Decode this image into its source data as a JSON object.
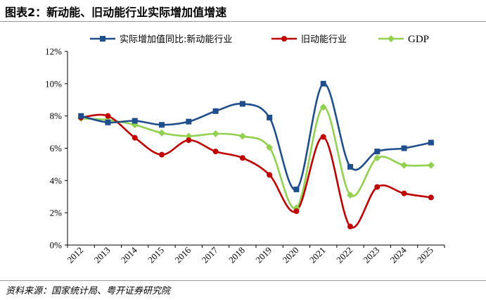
{
  "figure": {
    "title": "图表2：新动能、旧动能行业实际增加值增速",
    "source": "资料来源：国家统计局、粤开证券研究院"
  },
  "chart_data": {
    "type": "line",
    "categories": [
      "2012",
      "2013",
      "2014",
      "2015",
      "2016",
      "2017",
      "2018",
      "2019",
      "2020",
      "2021",
      "2022",
      "2023",
      "2024",
      "2025"
    ],
    "y_ticks": [
      "0%",
      "2%",
      "4%",
      "6%",
      "8%",
      "10%",
      "12%"
    ],
    "ylim": [
      0,
      12
    ],
    "grid": false,
    "legend_position": "top",
    "series": [
      {
        "name": "实际增加值同比:新动能行业",
        "color": "#1f4e8c",
        "marker": "square",
        "values": [
          8.0,
          7.6,
          7.7,
          7.45,
          7.65,
          8.3,
          8.75,
          7.9,
          3.45,
          10.0,
          4.85,
          5.8,
          6.0,
          6.35
        ]
      },
      {
        "name": "旧动能行业",
        "color": "#c00000",
        "marker": "circle",
        "values": [
          7.9,
          8.0,
          6.65,
          5.6,
          6.5,
          5.8,
          5.4,
          4.35,
          2.1,
          6.7,
          1.15,
          3.6,
          3.2,
          2.95
        ]
      },
      {
        "name": "GDP",
        "color": "#92d050",
        "marker": "diamond",
        "values": [
          7.85,
          7.75,
          7.45,
          6.95,
          6.75,
          6.9,
          6.75,
          6.05,
          2.3,
          8.55,
          3.1,
          5.4,
          4.95,
          4.95
        ]
      }
    ]
  }
}
